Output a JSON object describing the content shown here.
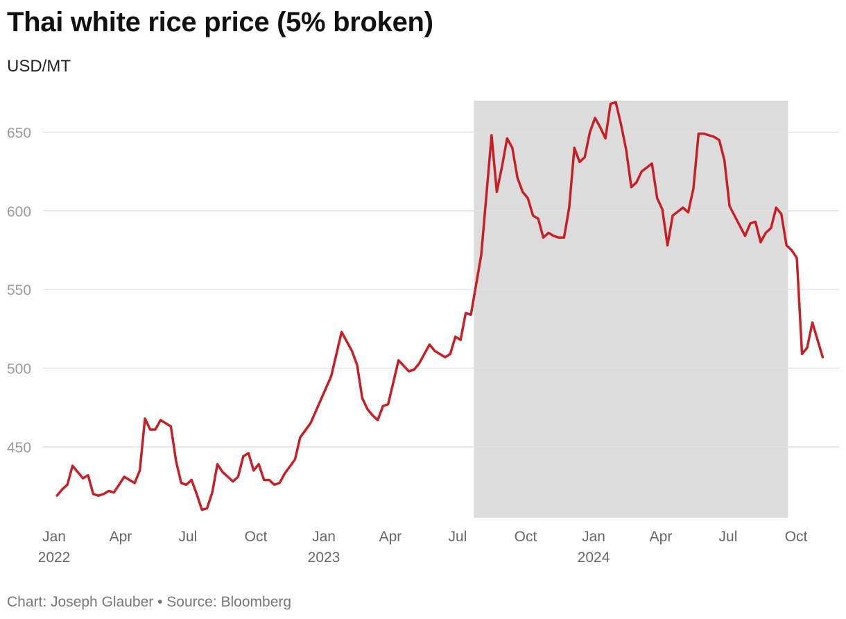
{
  "header": {
    "title": "Thai white rice price (5% broken)",
    "subtitle": "USD/MT"
  },
  "footer": {
    "credit": "Chart: Joseph Glauber • Source: Bloomberg"
  },
  "colors": {
    "line": "#c62026",
    "shade": "#dcdcdc",
    "grid": "#e2e2e2",
    "ytick": "#999999",
    "xtick": "#666666"
  },
  "chart_data": {
    "type": "line",
    "title": "Thai white rice price (5% broken)",
    "ylabel": "USD/MT",
    "ylim": [
      405,
      670
    ],
    "y_ticks": [
      450,
      500,
      550,
      600,
      650
    ],
    "grid": true,
    "x_ticks": [
      {
        "date": "2022-01-01",
        "label": "Jan",
        "year": "2022"
      },
      {
        "date": "2022-04-01",
        "label": "Apr",
        "year": ""
      },
      {
        "date": "2022-07-01",
        "label": "Jul",
        "year": ""
      },
      {
        "date": "2022-10-01",
        "label": "Oct",
        "year": ""
      },
      {
        "date": "2023-01-01",
        "label": "Jan",
        "year": "2023"
      },
      {
        "date": "2023-04-01",
        "label": "Apr",
        "year": ""
      },
      {
        "date": "2023-07-01",
        "label": "Jul",
        "year": ""
      },
      {
        "date": "2023-10-01",
        "label": "Oct",
        "year": ""
      },
      {
        "date": "2024-01-01",
        "label": "Jan",
        "year": "2024"
      },
      {
        "date": "2024-04-01",
        "label": "Apr",
        "year": ""
      },
      {
        "date": "2024-07-01",
        "label": "Jul",
        "year": ""
      },
      {
        "date": "2024-10-01",
        "label": "Oct",
        "year": ""
      }
    ],
    "shaded_region": {
      "start": "2023-07-23",
      "end": "2024-09-20"
    },
    "series": [
      {
        "points": [
          [
            "2022-01-05",
            419
          ],
          [
            "2022-01-12",
            423
          ],
          [
            "2022-01-19",
            426
          ],
          [
            "2022-01-26",
            438
          ],
          [
            "2022-02-02",
            434
          ],
          [
            "2022-02-09",
            430
          ],
          [
            "2022-02-16",
            432
          ],
          [
            "2022-02-23",
            420
          ],
          [
            "2022-03-02",
            419
          ],
          [
            "2022-03-09",
            420
          ],
          [
            "2022-03-16",
            422
          ],
          [
            "2022-03-23",
            421
          ],
          [
            "2022-03-30",
            426
          ],
          [
            "2022-04-06",
            431
          ],
          [
            "2022-04-13",
            429
          ],
          [
            "2022-04-20",
            427
          ],
          [
            "2022-04-27",
            435
          ],
          [
            "2022-05-04",
            468
          ],
          [
            "2022-05-11",
            461
          ],
          [
            "2022-05-18",
            461
          ],
          [
            "2022-05-25",
            467
          ],
          [
            "2022-06-01",
            465
          ],
          [
            "2022-06-08",
            463
          ],
          [
            "2022-06-15",
            441
          ],
          [
            "2022-06-22",
            427
          ],
          [
            "2022-06-29",
            426
          ],
          [
            "2022-07-06",
            429
          ],
          [
            "2022-07-13",
            420
          ],
          [
            "2022-07-20",
            410
          ],
          [
            "2022-07-27",
            411
          ],
          [
            "2022-08-03",
            421
          ],
          [
            "2022-08-10",
            439
          ],
          [
            "2022-08-17",
            434
          ],
          [
            "2022-08-24",
            431
          ],
          [
            "2022-08-31",
            428
          ],
          [
            "2022-09-07",
            431
          ],
          [
            "2022-09-14",
            444
          ],
          [
            "2022-09-21",
            446
          ],
          [
            "2022-09-28",
            435
          ],
          [
            "2022-10-05",
            439
          ],
          [
            "2022-10-12",
            429
          ],
          [
            "2022-10-19",
            429
          ],
          [
            "2022-10-26",
            426
          ],
          [
            "2022-11-02",
            427
          ],
          [
            "2022-11-09",
            433
          ],
          [
            "2022-11-23",
            442
          ],
          [
            "2022-11-30",
            456
          ],
          [
            "2022-12-14",
            465
          ],
          [
            "2023-01-11",
            495
          ],
          [
            "2023-01-25",
            523
          ],
          [
            "2023-02-08",
            511
          ],
          [
            "2023-02-15",
            502
          ],
          [
            "2023-02-22",
            481
          ],
          [
            "2023-03-01",
            474
          ],
          [
            "2023-03-08",
            470
          ],
          [
            "2023-03-15",
            467
          ],
          [
            "2023-03-22",
            476
          ],
          [
            "2023-03-29",
            477
          ],
          [
            "2023-04-12",
            505
          ],
          [
            "2023-04-26",
            498
          ],
          [
            "2023-05-03",
            499
          ],
          [
            "2023-05-10",
            503
          ],
          [
            "2023-05-24",
            515
          ],
          [
            "2023-05-31",
            511
          ],
          [
            "2023-06-14",
            507
          ],
          [
            "2023-06-21",
            509
          ],
          [
            "2023-06-28",
            520
          ],
          [
            "2023-07-05",
            518
          ],
          [
            "2023-07-12",
            535
          ],
          [
            "2023-07-19",
            534
          ],
          [
            "2023-08-02",
            572
          ],
          [
            "2023-08-16",
            648
          ],
          [
            "2023-08-23",
            612
          ],
          [
            "2023-08-30",
            628
          ],
          [
            "2023-09-06",
            646
          ],
          [
            "2023-09-13",
            640
          ],
          [
            "2023-09-20",
            621
          ],
          [
            "2023-09-27",
            612
          ],
          [
            "2023-10-04",
            608
          ],
          [
            "2023-10-11",
            597
          ],
          [
            "2023-10-18",
            595
          ],
          [
            "2023-10-25",
            583
          ],
          [
            "2023-11-01",
            586
          ],
          [
            "2023-11-08",
            584
          ],
          [
            "2023-11-15",
            583
          ],
          [
            "2023-11-22",
            583
          ],
          [
            "2023-11-29",
            602
          ],
          [
            "2023-12-06",
            640
          ],
          [
            "2023-12-13",
            631
          ],
          [
            "2023-12-20",
            634
          ],
          [
            "2023-12-27",
            650
          ],
          [
            "2024-01-03",
            659
          ],
          [
            "2024-01-10",
            653
          ],
          [
            "2024-01-17",
            646
          ],
          [
            "2024-01-24",
            668
          ],
          [
            "2024-01-31",
            669
          ],
          [
            "2024-02-07",
            655
          ],
          [
            "2024-02-14",
            639
          ],
          [
            "2024-02-21",
            615
          ],
          [
            "2024-02-28",
            618
          ],
          [
            "2024-03-06",
            625
          ],
          [
            "2024-03-20",
            630
          ],
          [
            "2024-03-27",
            608
          ],
          [
            "2024-04-03",
            601
          ],
          [
            "2024-04-10",
            578
          ],
          [
            "2024-04-17",
            597
          ],
          [
            "2024-05-01",
            602
          ],
          [
            "2024-05-08",
            599
          ],
          [
            "2024-05-15",
            614
          ],
          [
            "2024-05-22",
            649
          ],
          [
            "2024-05-29",
            649
          ],
          [
            "2024-06-12",
            647
          ],
          [
            "2024-06-19",
            645
          ],
          [
            "2024-06-26",
            632
          ],
          [
            "2024-07-03",
            603
          ],
          [
            "2024-07-24",
            584
          ],
          [
            "2024-07-31",
            592
          ],
          [
            "2024-08-07",
            593
          ],
          [
            "2024-08-14",
            580
          ],
          [
            "2024-08-21",
            586
          ],
          [
            "2024-08-28",
            589
          ],
          [
            "2024-09-04",
            602
          ],
          [
            "2024-09-11",
            598
          ],
          [
            "2024-09-18",
            578
          ],
          [
            "2024-09-25",
            575
          ],
          [
            "2024-10-02",
            570
          ],
          [
            "2024-10-09",
            509
          ],
          [
            "2024-10-16",
            513
          ],
          [
            "2024-10-23",
            529
          ],
          [
            "2024-11-06",
            507
          ]
        ]
      }
    ]
  }
}
